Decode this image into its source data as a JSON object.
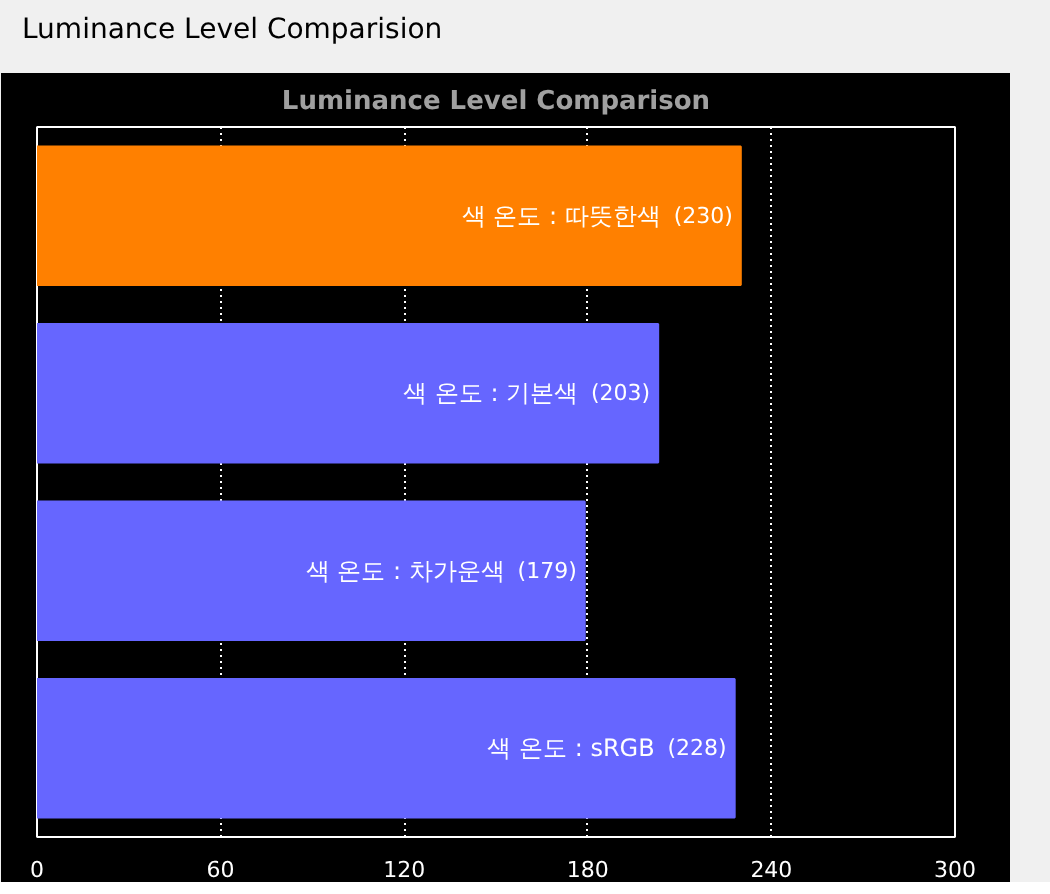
{
  "chart_data": {
    "type": "bar",
    "orientation": "horizontal",
    "title": "Luminance Level Comparision",
    "subtitle": "Luminance Level Comparison",
    "categories": [
      "색 온도 : 따뜻한색",
      "색 온도 : 기본색",
      "색 온도 : 차가운색",
      "색 온도 : sRGB"
    ],
    "values": [
      230,
      203,
      179,
      228
    ],
    "colors": [
      "#ff8000",
      "#6666ff",
      "#6666ff",
      "#6666ff"
    ],
    "value_labels": [
      "(230)",
      "(203)",
      "(179)",
      "(228)"
    ],
    "xlim": [
      0,
      300
    ],
    "xticks": [
      0,
      60,
      120,
      180,
      240,
      300
    ],
    "grid": "x",
    "tick_labels": "x"
  }
}
